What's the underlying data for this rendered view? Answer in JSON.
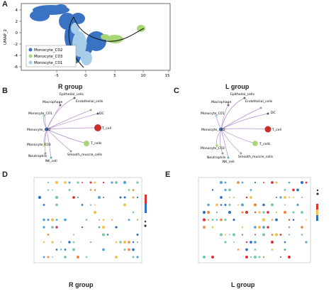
{
  "panels": {
    "A": {
      "letter": "A",
      "ylabel": "UMAP_2",
      "xticks": [
        "-5",
        "0",
        "5",
        "10",
        "15"
      ],
      "yticks": [
        "4",
        "2",
        "0",
        "-2",
        "-4",
        "-6"
      ],
      "legend": [
        {
          "label": "Monocyte_C02",
          "color": "#3b73c4"
        },
        {
          "label": "Monocyte_C03",
          "color": "#a7d676"
        },
        {
          "label": "Monocyte_C01",
          "color": "#a8cde9"
        }
      ]
    },
    "B": {
      "letter": "B",
      "title": "R group",
      "nodes": {
        "epithelial": "Epithelial_cells",
        "macrophage": "Macrophage",
        "endothelial": "Endothelial_cells",
        "c01": "Monocyte_C01",
        "dc": "DC",
        "c02": "Monocyte_C02",
        "tcell": "T_cell",
        "tcells": "T_cells",
        "c03": "Monocyte_C03",
        "smooth": "Smooth_muscle_cells",
        "neutrophils": "Neutrophils",
        "nk": "NK_cell"
      }
    },
    "C": {
      "letter": "C",
      "title": "L group",
      "nodes": {
        "epithelial": "Epithelial_cells",
        "macrophage": "Macrophage",
        "endothelial": "Endothelial_cells",
        "c01": "Monocyte_C01",
        "dc": "DC",
        "c02": "Monocyte_C02",
        "tcell": "T_cell",
        "tcells": "T_cells",
        "c03": "Monocyte_C03",
        "smooth": "Smooth_muscle_cells",
        "neutrophils": "Neutrophils",
        "nk": "NK_cell"
      }
    },
    "D": {
      "letter": "D",
      "title": "R group"
    },
    "E": {
      "letter": "E",
      "title": "L group"
    }
  },
  "colors": {
    "edge": "#b48bd0",
    "edge_light": "#c6a8dc",
    "tcell_node": "#c8302a",
    "tcells_node": "#a7d676",
    "c02_node": "#3b73c4",
    "c01_node": "#a8cde9"
  }
}
